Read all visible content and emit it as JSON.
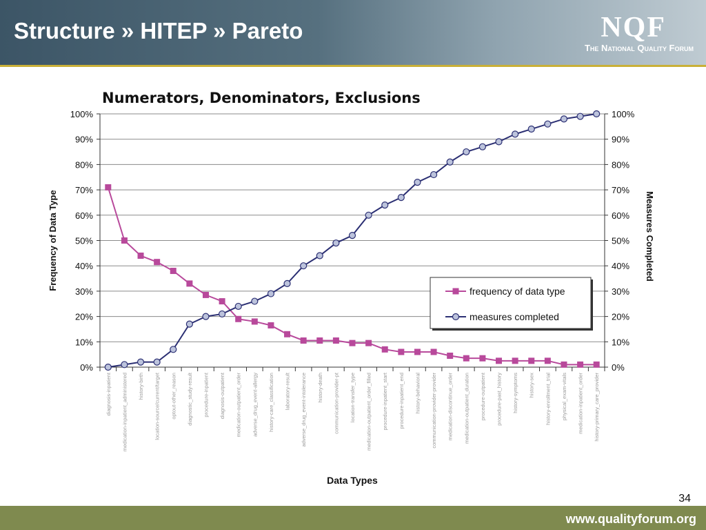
{
  "slide": {
    "title": "Structure » HITEP » Pareto",
    "logo_main": "NQF",
    "logo_sub": "The National Quality Forum",
    "page_number": "34",
    "footer_url": "www.qualityforum.org"
  },
  "colors": {
    "frequency_series": "#b8499b",
    "measures_series": "#2b2f73",
    "marker_fill_measures": "#bcc3dc",
    "footer": "#7f8a4f",
    "header": "#3c5566"
  },
  "chart_data": {
    "type": "line",
    "title": "Numerators, Denominators, Exclusions",
    "xlabel": "Data Types",
    "ylabel": "Frequency of Data Type",
    "y2label": "Measures Completed",
    "ylim": [
      0,
      100
    ],
    "y2lim": [
      0,
      100
    ],
    "yticks": [
      "0%",
      "10%",
      "20%",
      "30%",
      "40%",
      "50%",
      "60%",
      "70%",
      "80%",
      "90%",
      "100%"
    ],
    "grid": true,
    "legend_position": "right",
    "categories": [
      "diagnosis-inpatient",
      "medication-inpatient_administered",
      "history-birth",
      "location-source/current/target",
      "optout-other_reason",
      "diagnostic_study-result",
      "procedure-inpatient",
      "diagnosis-outpatient",
      "medication-outpatient_order",
      "adverse_drug_event-allergy",
      "history-care_classification",
      "laboratory-result",
      "adverse_drug_event-intolerance",
      "history-death",
      "communication-provider-pt",
      "location-transfer_type",
      "medication-outpatient_order_filled",
      "procedure-inpatient_start",
      "procedure-inpatient_end",
      "history-behavioral",
      "communication-provider-provider",
      "medication-discontinue_order",
      "medication-outpatient_duration",
      "procedure-outpatient",
      "procedure-past_history",
      "history-symptoms",
      "history-sex",
      "history-enrollment_trial",
      "physical_exam-vitals",
      "medication-inpatient_order",
      "history-primary_care_provider"
    ],
    "series": [
      {
        "name": "frequency of data type",
        "marker": "square",
        "values": [
          71,
          50,
          44,
          41.5,
          38,
          33,
          28.5,
          26,
          19,
          18,
          16.5,
          13,
          10.5,
          10.5,
          10.5,
          9.5,
          9.5,
          7,
          6,
          6,
          6,
          4.5,
          3.5,
          3.5,
          2.5,
          2.5,
          2.5,
          2.5,
          1,
          1,
          1
        ]
      },
      {
        "name": "measures completed",
        "marker": "circle",
        "values": [
          0,
          1,
          2,
          2,
          7,
          17,
          20,
          21,
          24,
          26,
          29,
          33,
          40,
          44,
          49,
          52,
          60,
          64,
          67,
          73,
          76,
          81,
          85,
          87,
          89,
          92,
          94,
          96,
          98,
          99,
          100
        ]
      }
    ]
  }
}
